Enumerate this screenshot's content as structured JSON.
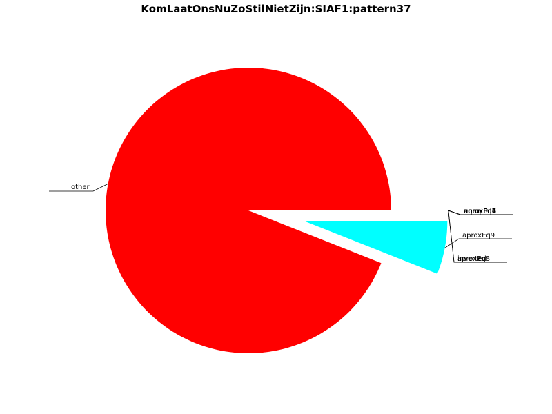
{
  "chart_data": {
    "type": "pie",
    "title": "KomLaatOnsNuZoStilNietZijn:SIAF1:pattern37",
    "slices": [
      {
        "label": "other",
        "value": 94.0,
        "color": "#ff0000",
        "explode": false
      },
      {
        "label": "aproxEq9",
        "value": 6.0,
        "color": "#00ffff",
        "explode": true
      },
      {
        "label": "aproxEq8",
        "value": 0.0,
        "color": "#00ffff",
        "explode": true
      },
      {
        "label": "aproxEq1",
        "value": 0.0,
        "color": "#00ffff",
        "explode": true
      },
      {
        "label": "unequal",
        "value": 0.0,
        "color": "#00ffff",
        "explode": true
      },
      {
        "label": "equal",
        "value": 0.0,
        "color": "#00ffff",
        "explode": true
      },
      {
        "label": "aproxEq2",
        "value": 0.0,
        "color": "#00ffff",
        "explode": true
      },
      {
        "label": "aproxEq3",
        "value": 0.0,
        "color": "#00ffff",
        "explode": true
      },
      {
        "label": "aproxEq4",
        "value": 0.0,
        "color": "#00ffff",
        "explode": true
      },
      {
        "label": "aproxEq5",
        "value": 0.0,
        "color": "#00ffff",
        "explode": true
      },
      {
        "label": "aproxEq6",
        "value": 0.0,
        "color": "#00ffff",
        "explode": true
      },
      {
        "label": "aproxEq7",
        "value": 0.0,
        "color": "#00ffff",
        "explode": true
      },
      {
        "label": "inverted",
        "value": 0.0,
        "color": "#00ffff",
        "explode": true
      }
    ],
    "legend": "none"
  }
}
